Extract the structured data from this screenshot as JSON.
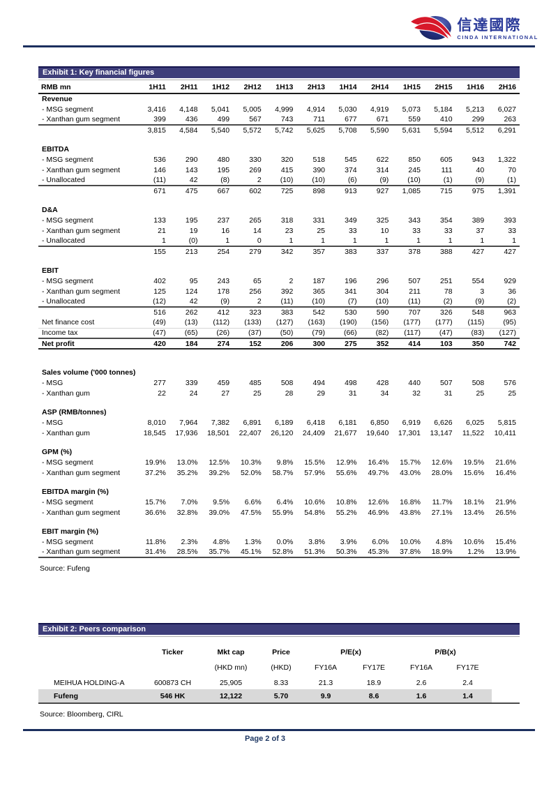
{
  "logo": {
    "cn": "信達國際",
    "en": "CINDA INTERNATIONAL"
  },
  "footer": {
    "page_label": "Page 2 of 3"
  },
  "exhibit1": {
    "title": "Exhibit 1: Key financial figures",
    "unit_label": "RMB mn",
    "columns": [
      "1H11",
      "2H11",
      "1H12",
      "2H12",
      "1H13",
      "2H13",
      "1H14",
      "2H14",
      "1H15",
      "2H15",
      "1H16",
      "2H16"
    ],
    "rows": [
      {
        "type": "section",
        "label": "Revenue"
      },
      {
        "type": "data",
        "label": "- MSG segment",
        "values": [
          "3,416",
          "4,148",
          "5,041",
          "5,005",
          "4,999",
          "4,914",
          "5,030",
          "4,919",
          "5,073",
          "5,184",
          "5,213",
          "6,027"
        ]
      },
      {
        "type": "data",
        "label": "- Xanthan gum segment",
        "values": [
          "399",
          "436",
          "499",
          "567",
          "743",
          "711",
          "677",
          "671",
          "559",
          "410",
          "299",
          "263"
        ]
      },
      {
        "type": "total",
        "label": "",
        "values": [
          "3,815",
          "4,584",
          "5,540",
          "5,572",
          "5,742",
          "5,625",
          "5,708",
          "5,590",
          "5,631",
          "5,594",
          "5,512",
          "6,291"
        ]
      },
      {
        "type": "spacer"
      },
      {
        "type": "section",
        "label": "EBITDA"
      },
      {
        "type": "data",
        "label": "- MSG segment",
        "values": [
          "536",
          "290",
          "480",
          "330",
          "320",
          "518",
          "545",
          "622",
          "850",
          "605",
          "943",
          "1,322"
        ]
      },
      {
        "type": "data",
        "label": "- Xanthan gum segment",
        "values": [
          "146",
          "143",
          "195",
          "269",
          "415",
          "390",
          "374",
          "314",
          "245",
          "111",
          "40",
          "70"
        ]
      },
      {
        "type": "data",
        "label": "- Unallocated",
        "values": [
          "(11)",
          "42",
          "(8)",
          "2",
          "(10)",
          "(10)",
          "(6)",
          "(9)",
          "(10)",
          "(1)",
          "(9)",
          "(1)"
        ]
      },
      {
        "type": "total",
        "label": "",
        "values": [
          "671",
          "475",
          "667",
          "602",
          "725",
          "898",
          "913",
          "927",
          "1,085",
          "715",
          "975",
          "1,391"
        ]
      },
      {
        "type": "spacer"
      },
      {
        "type": "section",
        "label": "D&A"
      },
      {
        "type": "data",
        "label": "- MSG segment",
        "values": [
          "133",
          "195",
          "237",
          "265",
          "318",
          "331",
          "349",
          "325",
          "343",
          "354",
          "389",
          "393"
        ]
      },
      {
        "type": "data",
        "label": "- Xanthan gum segment",
        "values": [
          "21",
          "19",
          "16",
          "14",
          "23",
          "25",
          "33",
          "10",
          "33",
          "33",
          "37",
          "33"
        ]
      },
      {
        "type": "data",
        "label": "- Unallocated",
        "values": [
          "1",
          "(0)",
          "1",
          "0",
          "1",
          "1",
          "1",
          "1",
          "1",
          "1",
          "1",
          "1"
        ]
      },
      {
        "type": "total",
        "label": "",
        "values": [
          "155",
          "213",
          "254",
          "279",
          "342",
          "357",
          "383",
          "337",
          "378",
          "388",
          "427",
          "427"
        ]
      },
      {
        "type": "spacer"
      },
      {
        "type": "section",
        "label": "EBIT"
      },
      {
        "type": "data",
        "label": "- MSG segment",
        "values": [
          "402",
          "95",
          "243",
          "65",
          "2",
          "187",
          "196",
          "296",
          "507",
          "251",
          "554",
          "929"
        ]
      },
      {
        "type": "data",
        "label": "- Xanthan gum segment",
        "values": [
          "125",
          "124",
          "178",
          "256",
          "392",
          "365",
          "341",
          "304",
          "211",
          "78",
          "3",
          "36"
        ]
      },
      {
        "type": "data",
        "label": "- Unallocated",
        "values": [
          "(12)",
          "42",
          "(9)",
          "2",
          "(11)",
          "(10)",
          "(7)",
          "(10)",
          "(11)",
          "(2)",
          "(9)",
          "(2)"
        ]
      },
      {
        "type": "total",
        "label": "",
        "values": [
          "516",
          "262",
          "412",
          "323",
          "383",
          "542",
          "530",
          "590",
          "707",
          "326",
          "548",
          "963"
        ]
      },
      {
        "type": "flat flat1",
        "label": "Net finance cost",
        "values": [
          "(49)",
          "(13)",
          "(112)",
          "(133)",
          "(127)",
          "(163)",
          "(190)",
          "(156)",
          "(177)",
          "(177)",
          "(115)",
          "(95)"
        ]
      },
      {
        "type": "flat",
        "label": "Income tax",
        "values": [
          "(47)",
          "(65)",
          "(26)",
          "(37)",
          "(50)",
          "(79)",
          "(66)",
          "(82)",
          "(117)",
          "(47)",
          "(83)",
          "(127)"
        ]
      },
      {
        "type": "netprofit",
        "label": "Net profit",
        "values": [
          "420",
          "184",
          "274",
          "152",
          "206",
          "300",
          "275",
          "352",
          "414",
          "103",
          "350",
          "742"
        ]
      },
      {
        "type": "spacer",
        "h": 26
      },
      {
        "type": "section",
        "label": "Sales volume ('000 tonnes)"
      },
      {
        "type": "data",
        "label": "- MSG",
        "values": [
          "277",
          "339",
          "459",
          "485",
          "508",
          "494",
          "498",
          "428",
          "440",
          "507",
          "508",
          "576"
        ]
      },
      {
        "type": "data",
        "label": "- Xanthan gum",
        "values": [
          "22",
          "24",
          "27",
          "25",
          "28",
          "29",
          "31",
          "34",
          "32",
          "31",
          "25",
          "25"
        ]
      },
      {
        "type": "spacer"
      },
      {
        "type": "section",
        "label": "ASP (RMB/tonnes)"
      },
      {
        "type": "data",
        "label": "- MSG",
        "values": [
          "8,010",
          "7,964",
          "7,382",
          "6,891",
          "6,189",
          "6,418",
          "6,181",
          "6,850",
          "6,919",
          "6,626",
          "6,025",
          "5,815"
        ]
      },
      {
        "type": "data",
        "label": "- Xanthan gum",
        "values": [
          "18,545",
          "17,936",
          "18,501",
          "22,407",
          "26,120",
          "24,409",
          "21,677",
          "19,640",
          "17,301",
          "13,147",
          "11,522",
          "10,411"
        ]
      },
      {
        "type": "spacer"
      },
      {
        "type": "section",
        "label": "GPM (%)"
      },
      {
        "type": "data",
        "label": "- MSG segment",
        "values": [
          "19.9%",
          "13.0%",
          "12.5%",
          "10.3%",
          "9.8%",
          "15.5%",
          "12.9%",
          "16.4%",
          "15.7%",
          "12.6%",
          "19.5%",
          "21.6%"
        ]
      },
      {
        "type": "data",
        "label": "- Xanthan gum segment",
        "values": [
          "37.2%",
          "35.2%",
          "39.2%",
          "52.0%",
          "58.7%",
          "57.9%",
          "55.6%",
          "49.7%",
          "43.0%",
          "28.0%",
          "15.6%",
          "16.4%"
        ]
      },
      {
        "type": "spacer"
      },
      {
        "type": "section",
        "label": "EBITDA margin (%)"
      },
      {
        "type": "data",
        "label": "- MSG segment",
        "values": [
          "15.7%",
          "7.0%",
          "9.5%",
          "6.6%",
          "6.4%",
          "10.6%",
          "10.8%",
          "12.6%",
          "16.8%",
          "11.7%",
          "18.1%",
          "21.9%"
        ]
      },
      {
        "type": "data",
        "label": "- Xanthan gum segment",
        "values": [
          "36.6%",
          "32.8%",
          "39.0%",
          "47.5%",
          "55.9%",
          "54.8%",
          "55.2%",
          "46.9%",
          "43.8%",
          "27.1%",
          "13.4%",
          "26.5%"
        ]
      },
      {
        "type": "spacer"
      },
      {
        "type": "section",
        "label": "EBIT margin (%)"
      },
      {
        "type": "data",
        "label": "- MSG segment",
        "values": [
          "11.8%",
          "2.3%",
          "4.8%",
          "1.3%",
          "0.0%",
          "3.8%",
          "3.9%",
          "6.0%",
          "10.0%",
          "4.8%",
          "10.6%",
          "15.4%"
        ]
      },
      {
        "type": "data",
        "label": "- Xanthan gum segment",
        "last": true,
        "values": [
          "31.4%",
          "28.5%",
          "35.7%",
          "45.1%",
          "52.8%",
          "51.3%",
          "50.3%",
          "45.3%",
          "37.8%",
          "18.9%",
          "1.2%",
          "13.9%"
        ]
      }
    ],
    "source": "Source: Fufeng"
  },
  "exhibit2": {
    "title": "Exhibit 2: Peers comparison",
    "header1": {
      "ticker": "Ticker",
      "mktcap": "Mkt cap",
      "price": "Price",
      "pe": "P/E(x)",
      "pb": "P/B(x)"
    },
    "header2": {
      "mktcap_unit": "(HKD mn)",
      "price_unit": "(HKD)",
      "pe16": "FY16A",
      "pe17": "FY17E",
      "pb16": "FY16A",
      "pb17": "FY17E"
    },
    "rows": [
      {
        "name": "MEIHUA HOLDING-A",
        "ticker": "600873 CH",
        "mktcap": "25,905",
        "price": "8.33",
        "pe16": "21.3",
        "pe17": "18.9",
        "pb16": "2.6",
        "pb17": "2.4",
        "highlight": false
      },
      {
        "name": "Fufeng",
        "ticker": "546 HK",
        "mktcap": "12,122",
        "price": "5.70",
        "pe16": "9.9",
        "pe17": "8.6",
        "pb16": "1.6",
        "pb17": "1.4",
        "highlight": true
      }
    ],
    "source": "Source: Bloomberg, CIRL"
  },
  "colors": {
    "band": "#3E3E7A",
    "navy_rule": "#1B2F5E",
    "footer_text": "#1F3864",
    "highlight_row": "#D9D9D9",
    "logo_blue": "#2A3A99",
    "logo_red": "#D7182A",
    "logo_ellipse": "#24307E"
  }
}
